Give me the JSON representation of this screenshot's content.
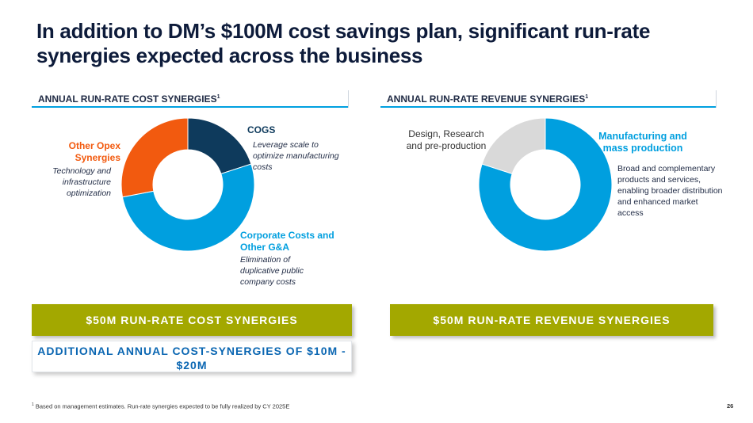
{
  "title": "In addition to DM’s $100M cost savings plan, significant run-rate synergies expected across the business",
  "colors": {
    "navy": "#0e3a5c",
    "blue": "#009fdf",
    "orange": "#f25a0f",
    "gray": "#d9d9d9",
    "olive": "#a3a800",
    "callout_text": "#0a66b2"
  },
  "cost": {
    "header": "ANNUAL RUN-RATE COST SYNERGIES",
    "header_sup": "1",
    "chart_data": {
      "type": "pie",
      "segments": [
        {
          "name": "COGS",
          "value": 20
        },
        {
          "name": "Corporate Costs and Other G&A",
          "value": 52
        },
        {
          "name": "Other Opex Synergies",
          "value": 28
        }
      ]
    },
    "cogs_label": "COGS",
    "cogs_desc": "Leverage scale to optimize manufacturing costs",
    "corp_label": "Corporate Costs and Other G&A",
    "corp_desc": "Elimination of duplicative public company costs",
    "opex_label": "Other Opex Synergies",
    "opex_desc": "Technology and infrastructure optimization",
    "banner": "$50M RUN-RATE COST SYNERGIES",
    "callout": "ADDITIONAL ANNUAL COST-SYNERGIES OF $10M - $20M"
  },
  "revenue": {
    "header": "ANNUAL RUN-RATE REVENUE SYNERGIES",
    "header_sup": "1",
    "chart_data": {
      "type": "pie",
      "segments": [
        {
          "name": "Manufacturing and mass production",
          "value": 80
        },
        {
          "name": "Design, Research and pre-production",
          "value": 20
        }
      ]
    },
    "mfg_label": "Manufacturing and mass production",
    "mfg_desc": "Broad and complementary products and services, enabling broader distribution and enhanced market access",
    "design_label": "Design, Research and pre-production",
    "banner": "$50M RUN-RATE REVENUE SYNERGIES"
  },
  "footnote_sup": "1",
  "footnote": "Based on management estimates. Run-rate synergies expected to be fully realized by CY 2025E",
  "page_number": "26"
}
